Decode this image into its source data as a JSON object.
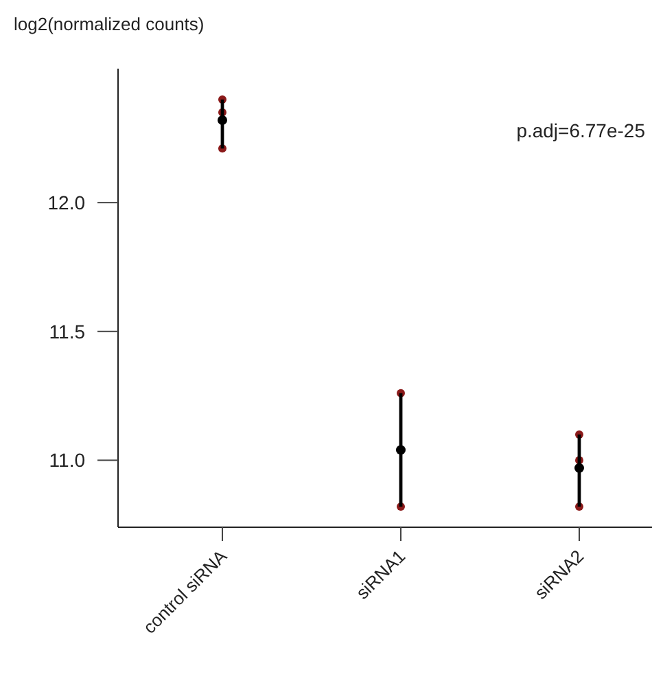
{
  "chart_data": {
    "type": "scatter",
    "ylabel": "log2(normalized counts)",
    "annotations": [
      "p.adj=6.77e-25"
    ],
    "categories": [
      "control siRNA",
      "siRNA1",
      "siRNA2"
    ],
    "ylim": [
      10.74,
      12.52
    ],
    "yticks": [
      {
        "value": 11,
        "label": "11.0"
      },
      {
        "value": 11.5,
        "label": "11.5"
      },
      {
        "value": 12,
        "label": "12.0"
      }
    ],
    "marker": "circle",
    "grid": false,
    "series": [
      {
        "color": "#000000",
        "values": [
          12.32,
          11.04,
          10.97
        ],
        "errors": [
          [
            12.21,
            12.4
          ],
          [
            10.82,
            11.26
          ],
          [
            10.82,
            11.1
          ]
        ]
      },
      {
        "color": "#8b1a1a",
        "x": [
          "control siRNA",
          "control siRNA",
          "control siRNA",
          "siRNA1",
          "siRNA1",
          "siRNA2",
          "siRNA2",
          "siRNA2"
        ],
        "values": [
          12.4,
          12.35,
          12.21,
          11.26,
          10.82,
          11.1,
          11.0,
          10.82
        ]
      }
    ]
  }
}
